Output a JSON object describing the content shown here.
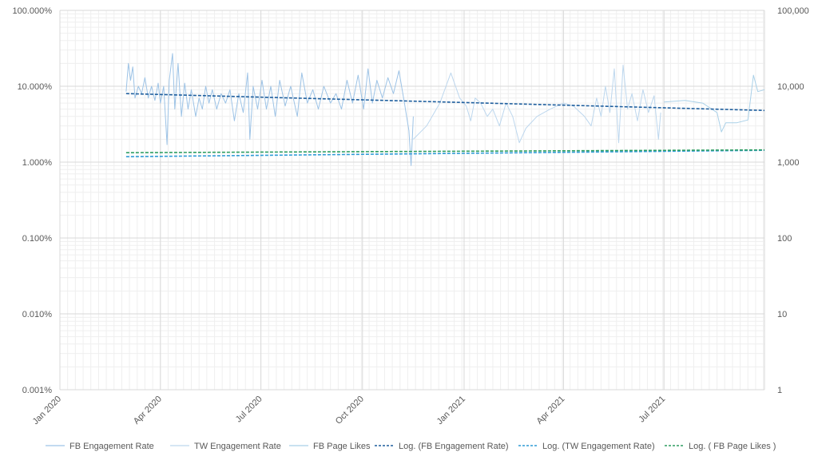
{
  "chart_data": {
    "type": "line",
    "y_scale_left": "log",
    "y_scale_right": "log",
    "x_range": [
      "2020-01-01",
      "2021-09-30"
    ],
    "x_ticks": [
      "2020-01-01",
      "2020-04-01",
      "2020-07-01",
      "2020-10-01",
      "2021-01-01",
      "2021-04-01",
      "2021-07-01"
    ],
    "x_tick_labels": [
      "Jan 2020",
      "Apr 2020",
      "Jul 2020",
      "Oct 2020",
      "Jan 2021",
      "Apr 2021",
      "Jul 2021"
    ],
    "y_left_range": [
      1e-05,
      1
    ],
    "y_left_ticks": [
      1e-05,
      0.0001,
      0.001,
      0.01,
      0.1,
      1
    ],
    "y_left_tick_labels": [
      "0.001%",
      "0.010%",
      "0.100%",
      "1.000%",
      "10.000%",
      "100.000%"
    ],
    "y_right_range": [
      1,
      100000
    ],
    "y_right_ticks": [
      1,
      10,
      100,
      1000,
      10000,
      100000
    ],
    "y_right_tick_labels": [
      "1",
      "10",
      "100",
      "1,000",
      "10,000",
      "100,000"
    ],
    "grid": true,
    "legend_position": "bottom",
    "colors": {
      "fb_rate": "#9dc3e6",
      "tw_rate": "#bdd7ee",
      "fb_likes": "#a9d0e8",
      "trend_fb_rate": "#1f5f9e",
      "trend_tw_rate": "#2e9bd6",
      "trend_fb_likes": "#2e9e62",
      "grid_major": "#d9d9d9",
      "grid_minor": "#efefef",
      "text": "#595959"
    },
    "series": [
      {
        "name": "FB Engagement Rate",
        "axis": "left",
        "style": "solid",
        "points": [
          [
            "2020-03-01",
            0.085
          ],
          [
            "2020-03-03",
            0.2
          ],
          [
            "2020-03-05",
            0.12
          ],
          [
            "2020-03-07",
            0.18
          ],
          [
            "2020-03-09",
            0.07
          ],
          [
            "2020-03-12",
            0.1
          ],
          [
            "2020-03-15",
            0.08
          ],
          [
            "2020-03-18",
            0.13
          ],
          [
            "2020-03-21",
            0.07
          ],
          [
            "2020-03-24",
            0.1
          ],
          [
            "2020-03-27",
            0.065
          ],
          [
            "2020-03-30",
            0.11
          ],
          [
            "2020-04-01",
            0.06
          ],
          [
            "2020-04-04",
            0.1
          ],
          [
            "2020-04-07",
            0.017
          ],
          [
            "2020-04-09",
            0.12
          ],
          [
            "2020-04-12",
            0.27
          ],
          [
            "2020-04-14",
            0.05
          ],
          [
            "2020-04-17",
            0.2
          ],
          [
            "2020-04-20",
            0.04
          ],
          [
            "2020-04-23",
            0.11
          ],
          [
            "2020-04-26",
            0.05
          ],
          [
            "2020-04-29",
            0.09
          ],
          [
            "2020-05-03",
            0.04
          ],
          [
            "2020-05-06",
            0.07
          ],
          [
            "2020-05-09",
            0.05
          ],
          [
            "2020-05-12",
            0.1
          ],
          [
            "2020-05-15",
            0.06
          ],
          [
            "2020-05-18",
            0.09
          ],
          [
            "2020-05-22",
            0.05
          ],
          [
            "2020-05-26",
            0.08
          ],
          [
            "2020-05-30",
            0.06
          ],
          [
            "2020-06-03",
            0.09
          ],
          [
            "2020-06-07",
            0.035
          ],
          [
            "2020-06-11",
            0.08
          ],
          [
            "2020-06-15",
            0.045
          ],
          [
            "2020-06-19",
            0.15
          ],
          [
            "2020-06-21",
            0.02
          ],
          [
            "2020-06-24",
            0.1
          ],
          [
            "2020-06-28",
            0.05
          ],
          [
            "2020-07-02",
            0.12
          ],
          [
            "2020-07-06",
            0.05
          ],
          [
            "2020-07-10",
            0.1
          ],
          [
            "2020-07-14",
            0.04
          ],
          [
            "2020-07-18",
            0.12
          ],
          [
            "2020-07-23",
            0.055
          ],
          [
            "2020-07-28",
            0.1
          ],
          [
            "2020-08-03",
            0.04
          ],
          [
            "2020-08-07",
            0.15
          ],
          [
            "2020-08-12",
            0.06
          ],
          [
            "2020-08-17",
            0.09
          ],
          [
            "2020-08-22",
            0.05
          ],
          [
            "2020-08-27",
            0.1
          ],
          [
            "2020-09-02",
            0.06
          ],
          [
            "2020-09-07",
            0.08
          ],
          [
            "2020-09-12",
            0.05
          ],
          [
            "2020-09-17",
            0.12
          ],
          [
            "2020-09-22",
            0.06
          ],
          [
            "2020-09-27",
            0.14
          ],
          [
            "2020-10-02",
            0.05
          ],
          [
            "2020-10-06",
            0.17
          ],
          [
            "2020-10-10",
            0.06
          ],
          [
            "2020-10-14",
            0.12
          ],
          [
            "2020-10-19",
            0.07
          ],
          [
            "2020-10-24",
            0.13
          ],
          [
            "2020-10-29",
            0.08
          ],
          [
            "2020-11-03",
            0.16
          ],
          [
            "2020-11-08",
            0.06
          ],
          [
            "2020-11-12",
            0.026
          ],
          [
            "2020-11-14",
            0.009
          ],
          [
            "2020-11-16",
            0.04
          ]
        ]
      },
      {
        "name": "TW Engagement Rate",
        "axis": "left",
        "style": "solid",
        "points": [
          [
            "2020-11-16",
            0.02
          ],
          [
            "2020-11-28",
            0.03
          ],
          [
            "2020-12-10",
            0.06
          ],
          [
            "2020-12-20",
            0.15
          ],
          [
            "2020-12-28",
            0.07
          ],
          [
            "2021-01-03",
            0.055
          ],
          [
            "2021-01-07",
            0.035
          ],
          [
            "2021-01-11",
            0.07
          ],
          [
            "2021-01-16",
            0.06
          ],
          [
            "2021-01-22",
            0.04
          ],
          [
            "2021-01-27",
            0.05
          ],
          [
            "2021-02-02",
            0.03
          ],
          [
            "2021-02-08",
            0.06
          ],
          [
            "2021-02-14",
            0.04
          ],
          [
            "2021-02-20",
            0.018
          ],
          [
            "2021-02-26",
            0.028
          ],
          [
            "2021-03-08",
            0.04
          ],
          [
            "2021-03-20",
            0.05
          ],
          [
            "2021-04-01",
            0.06
          ],
          [
            "2021-04-10",
            0.055
          ],
          [
            "2021-04-20",
            0.04
          ],
          [
            "2021-04-26",
            0.03
          ],
          [
            "2021-05-01",
            0.07
          ],
          [
            "2021-05-05",
            0.04
          ],
          [
            "2021-05-09",
            0.1
          ],
          [
            "2021-05-13",
            0.045
          ],
          [
            "2021-05-17",
            0.17
          ],
          [
            "2021-05-21",
            0.018
          ],
          [
            "2021-05-25",
            0.19
          ],
          [
            "2021-05-29",
            0.05
          ],
          [
            "2021-06-02",
            0.08
          ],
          [
            "2021-06-07",
            0.035
          ],
          [
            "2021-06-12",
            0.09
          ],
          [
            "2021-06-17",
            0.045
          ],
          [
            "2021-06-22",
            0.075
          ],
          [
            "2021-06-26",
            0.02
          ],
          [
            "2021-06-28",
            0.045
          ]
        ]
      },
      {
        "name": "FB Page Likes",
        "axis": "right",
        "style": "solid",
        "points": [
          [
            "2021-07-01",
            6200
          ],
          [
            "2021-07-20",
            6500
          ],
          [
            "2021-08-05",
            6000
          ],
          [
            "2021-08-18",
            4500
          ],
          [
            "2021-08-22",
            2500
          ],
          [
            "2021-08-26",
            3300
          ],
          [
            "2021-09-05",
            3300
          ],
          [
            "2021-09-15",
            3600
          ],
          [
            "2021-09-20",
            14000
          ],
          [
            "2021-09-24",
            8500
          ],
          [
            "2021-09-30",
            9000
          ]
        ]
      },
      {
        "name": "Log. (FB Engagement Rate)",
        "axis": "left",
        "style": "dashed",
        "points": [
          [
            "2020-03-01",
            0.08
          ],
          [
            "2021-09-30",
            0.048
          ]
        ]
      },
      {
        "name": "Log. (TW Engagement Rate)",
        "axis": "left",
        "style": "dashed",
        "points": [
          [
            "2020-03-01",
            0.0118
          ],
          [
            "2021-09-30",
            0.0143
          ]
        ]
      },
      {
        "name": "Log. ( FB Page Likes )",
        "axis": "right",
        "style": "dashed",
        "points": [
          [
            "2020-03-01",
            1330
          ],
          [
            "2021-09-30",
            1450
          ]
        ]
      }
    ]
  }
}
